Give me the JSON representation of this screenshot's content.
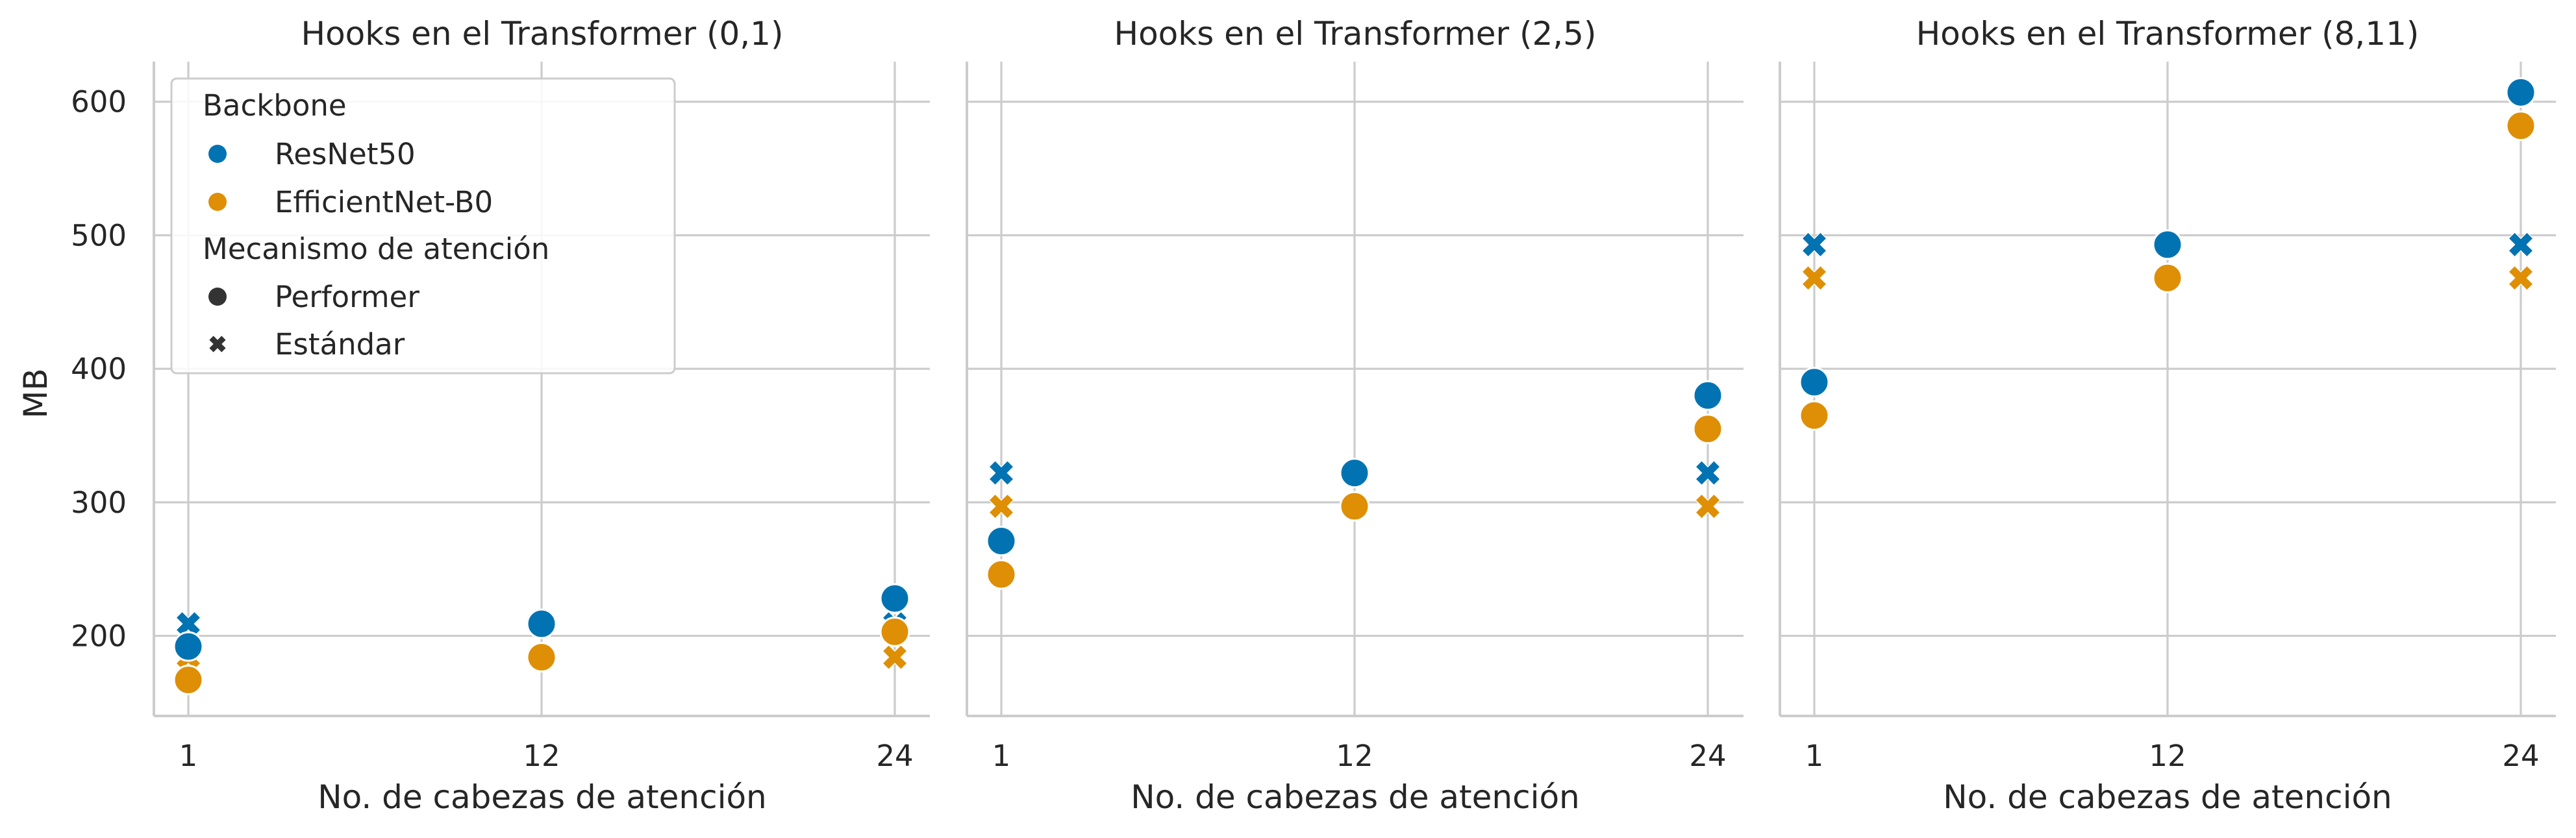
{
  "chart_data": {
    "type": "scatter",
    "ylabel": "MB",
    "ylim": [
      140,
      630
    ],
    "yticks": [
      200,
      300,
      400,
      500,
      600
    ],
    "x_categories": [
      "1",
      "12",
      "24"
    ],
    "grid": true,
    "legend": {
      "placement": "upper-left of first panel",
      "hue_title": "Backbone",
      "style_title": "Mecanismo de atención",
      "hue_entries": [
        {
          "label": "ResNet50",
          "color": "#0173b2"
        },
        {
          "label": "EfficientNet-B0",
          "color": "#de8f05"
        }
      ],
      "style_entries": [
        {
          "label": "Performer",
          "marker": "circle"
        },
        {
          "label": "Estándar",
          "marker": "x"
        }
      ]
    },
    "panels": [
      {
        "title": "Hooks en el Transformer (0,1)",
        "xlabel": "No. de cabezas de atención",
        "series": [
          {
            "backbone": "ResNet50",
            "mechanism": "Estándar",
            "values": [
              209,
              209,
              209
            ]
          },
          {
            "backbone": "EfficientNet-B0",
            "mechanism": "Estándar",
            "values": [
              184,
              184,
              184
            ]
          },
          {
            "backbone": "ResNet50",
            "mechanism": "Performer",
            "values": [
              192,
              209,
              228
            ]
          },
          {
            "backbone": "EfficientNet-B0",
            "mechanism": "Performer",
            "values": [
              167,
              184,
              203
            ]
          }
        ]
      },
      {
        "title": "Hooks en el Transformer (2,5)",
        "xlabel": "No. de cabezas de atención",
        "series": [
          {
            "backbone": "ResNet50",
            "mechanism": "Estándar",
            "values": [
              322,
              322,
              322
            ]
          },
          {
            "backbone": "EfficientNet-B0",
            "mechanism": "Estándar",
            "values": [
              297,
              297,
              297
            ]
          },
          {
            "backbone": "ResNet50",
            "mechanism": "Performer",
            "values": [
              271,
              322,
              380
            ]
          },
          {
            "backbone": "EfficientNet-B0",
            "mechanism": "Performer",
            "values": [
              246,
              297,
              355
            ]
          }
        ]
      },
      {
        "title": "Hooks en el Transformer (8,11)",
        "xlabel": "No. de cabezas de atención",
        "series": [
          {
            "backbone": "ResNet50",
            "mechanism": "Estándar",
            "values": [
              493,
              493,
              493
            ]
          },
          {
            "backbone": "EfficientNet-B0",
            "mechanism": "Estándar",
            "values": [
              468,
              468,
              468
            ]
          },
          {
            "backbone": "ResNet50",
            "mechanism": "Performer",
            "values": [
              390,
              493,
              607
            ]
          },
          {
            "backbone": "EfficientNet-B0",
            "mechanism": "Performer",
            "values": [
              365,
              468,
              582
            ]
          }
        ]
      }
    ]
  }
}
